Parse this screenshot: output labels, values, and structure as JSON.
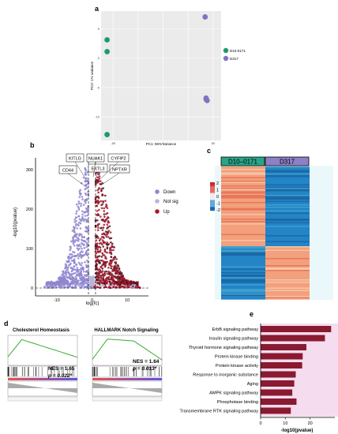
{
  "panels": {
    "a": "a",
    "b": "b",
    "c": "c",
    "d": "d",
    "e": "e"
  },
  "colors": {
    "green": "#1a9b6b",
    "purple": "#8072c4",
    "down": "#8f86d0",
    "notsig": "#b9b5d8",
    "up": "#a8182c",
    "upDark": "#5a1520",
    "heatA": "#2aa58a",
    "heatB": "#8d7fc8",
    "red": "#d62b2b",
    "blue": "#1f6fb0",
    "bar": "#8a1a30"
  },
  "chart_data": [
    {
      "type": "scatter",
      "panel": "a",
      "xlabel": "PC1: 96% variance",
      "ylabel": "PC2: 1% variance",
      "xticks": [
        "-50",
        "0",
        "50"
      ],
      "yticks": [
        "5",
        "0",
        "-5",
        "-10"
      ],
      "xlim": [
        -62,
        58
      ],
      "ylim": [
        -14,
        8
      ],
      "legend": [
        "D10-0171",
        "D317"
      ],
      "series": [
        {
          "name": "D10-0171",
          "points": [
            [
              -56,
              3.1
            ],
            [
              -56,
              1.1
            ],
            [
              -56,
              -13.0
            ]
          ]
        },
        {
          "name": "D317",
          "points": [
            [
              42,
              7.0
            ],
            [
              43,
              -6.8
            ],
            [
              44,
              -7.2
            ],
            [
              43,
              -7.0
            ]
          ]
        }
      ]
    },
    {
      "type": "scatter",
      "panel": "b",
      "xlabel": "log(fc)",
      "ylabel": "-log10(pvalue)",
      "xticks": [
        -10,
        0,
        10
      ],
      "yticks": [
        0,
        100,
        200,
        300
      ],
      "xlim": [
        -16,
        16
      ],
      "ylim": [
        -20,
        330
      ],
      "legend": [
        "Down",
        "Not sig",
        "Up"
      ],
      "annotations": [
        "KITLG",
        "NUAK1",
        "CYFIP2",
        "CD44",
        "EXTL3",
        "NPTXR"
      ]
    },
    {
      "type": "heatmap",
      "panel": "c",
      "groups": [
        "D10–0171",
        "D317"
      ],
      "scale": [
        2,
        1,
        0,
        -1,
        -2
      ]
    },
    {
      "type": "line",
      "panel": "d",
      "plots": [
        {
          "title": "Cholesterol Homeostasis",
          "stat1": "NES = 1.65",
          "stat2": "p = 0.022*"
        },
        {
          "title": "HALLMARK Notch Signaling",
          "stat1": "NES = 1.64",
          "stat2": "p = 0.013*"
        }
      ]
    },
    {
      "type": "bar",
      "panel": "e",
      "categories": [
        "ErbB signaling pathway",
        "Insulin signaling pathway",
        "Thyroid hormone signaling pathway",
        "Protein kinase binding",
        "Protein kinase activity",
        "Response to inorganic substance",
        "Aging",
        "AMPK signaling pathway",
        "Phosphotase binding",
        "Transmembrane RTK signaling pathway"
      ],
      "values": [
        28.5,
        26.0,
        18.5,
        17.0,
        16.8,
        14.2,
        13.6,
        12.8,
        14.5,
        12.2
      ],
      "xlabel": "-log10(pvalue)",
      "xticks": [
        0,
        10,
        20
      ],
      "xlim": [
        0,
        30
      ]
    }
  ]
}
